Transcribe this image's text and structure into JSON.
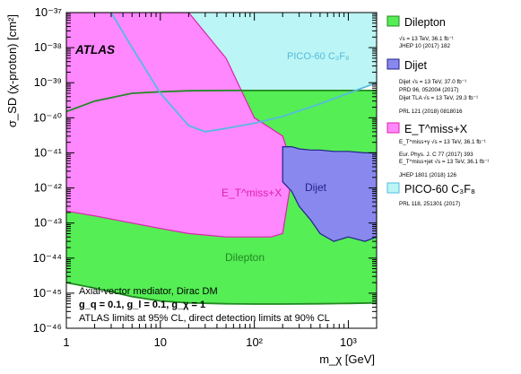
{
  "chart_data": {
    "type": "area",
    "title": "",
    "xlabel": "m_χ [GeV]",
    "ylabel": "σ_SD (χ-proton) [cm²]",
    "xscale": "log",
    "yscale": "log",
    "xlim": [
      1,
      2000
    ],
    "ylim": [
      1e-46,
      1e-37
    ],
    "x_ticks": [
      "1",
      "10",
      "10²",
      "10³"
    ],
    "y_ticks": [
      "10⁻⁴⁶",
      "10⁻⁴⁵",
      "10⁻⁴⁴",
      "10⁻⁴³",
      "10⁻⁴²",
      "10⁻⁴¹",
      "10⁻⁴⁰",
      "10⁻³⁹",
      "10⁻³⁸",
      "10⁻³⁷"
    ],
    "atlas_label": "ATLAS",
    "annotations": {
      "pico": "PICO-60 C₃F₈",
      "etmiss": "E_T^miss+X",
      "dijet": "Dijet",
      "dilepton": "Dilepton"
    },
    "notes": [
      "Axial-vector mediator, Dirac DM",
      "g_q = 0.1, g_l = 0.1, g_χ = 1",
      "ATLAS limits at 95% CL, direct detection limits at 90% CL"
    ],
    "legend_position": "right",
    "colors": {
      "dilepton": "#55ee55",
      "dijet": "#8888ee",
      "etmiss": "#ff88ff",
      "pico": "#bbf5f5",
      "pico_line": "#55bbdd",
      "dilepton_line": "#228822",
      "etmiss_line": "#dd22aa",
      "dijet_line": "#222288"
    },
    "series": [
      {
        "name": "Dilepton",
        "x": [
          1,
          2,
          5,
          10,
          20,
          50,
          100,
          200,
          500,
          1000,
          2000
        ],
        "y_lower": [
          2e-45,
          1.4e-45,
          8e-46,
          6e-46,
          5.3e-46,
          5e-46,
          4.9e-46,
          4.9e-46,
          5e-46,
          5.1e-46,
          5.3e-46
        ],
        "y_upper": [
          1.5e-40,
          3e-40,
          5e-40,
          5.5e-40,
          5.9e-40,
          6e-40,
          6e-40,
          6e-40,
          6e-40,
          6e-40,
          6e-40
        ],
        "references": [
          "√s = 13 TeV, 36.1 fb⁻¹",
          "JHEP 10 (2017) 182"
        ]
      },
      {
        "name": "Dijet",
        "x": [
          200,
          250,
          300,
          400,
          500,
          700,
          1000,
          1500,
          2000
        ],
        "y_lower": [
          1.5e-42,
          8e-43,
          3e-43,
          1.2e-43,
          5e-44,
          3e-44,
          4e-44,
          3e-44,
          4e-44
        ],
        "y_upper": [
          1.5e-41,
          1.5e-41,
          1.3e-41,
          1.2e-41,
          1.2e-41,
          1.1e-41,
          1.1e-41,
          1e-41,
          1e-41
        ],
        "references": [
          "Dijet √s = 13 TeV, 37.0 fb⁻¹",
          "PRD 96, 052004 (2017)",
          "Dijet TLA √s = 13 TeV, 29.3 fb⁻¹",
          "PRL 121 (2018) 0818016"
        ]
      },
      {
        "name": "E_T^miss+X",
        "x": [
          1,
          2,
          5,
          10,
          20,
          50,
          100,
          150,
          200,
          250
        ],
        "y_lower": [
          2.2e-43,
          1.6e-43,
          1e-43,
          7e-44,
          5e-44,
          4e-44,
          4e-44,
          4e-44,
          5e-44,
          2e-42
        ],
        "y_upper": [
          1e-37,
          1e-37,
          1e-37,
          1e-37,
          1e-37,
          5e-39,
          1e-40,
          5e-41,
          3e-41,
          5e-42
        ],
        "references": [
          "E_T^miss+γ √s = 13 TeV, 36.1 fb⁻¹",
          "Eur. Phys. J. C 77 (2017) 393",
          "E_T^miss+jet √s = 13 TeV, 36.1 fb⁻¹",
          "JHEP 1801 (2018) 126"
        ]
      },
      {
        "name": "PICO-60 C₃F₈",
        "x": [
          3,
          5,
          10,
          20,
          30,
          50,
          100,
          200,
          500,
          1000,
          2000
        ],
        "y": [
          1e-37,
          1e-38,
          5e-40,
          6e-41,
          4e-41,
          5e-41,
          7e-41,
          1.1e-40,
          2.5e-40,
          5e-40,
          1e-39
        ],
        "references": [
          "PRL 118, 251301 (2017)"
        ]
      }
    ]
  }
}
